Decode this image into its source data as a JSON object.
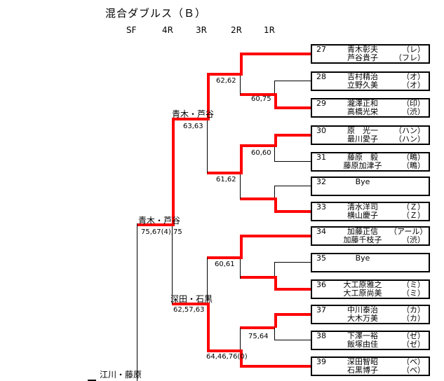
{
  "title": "混合ダブルス（Ｂ）",
  "round_headers": [
    "SF",
    "4R",
    "3R",
    "2R",
    "1R"
  ],
  "colors": {
    "advance_path": "#ff0000",
    "line": "#000000",
    "background": "#ffffff"
  },
  "entries": [
    {
      "seed": "27",
      "rows": [
        {
          "name": "青木彰夫",
          "club": "（レ）"
        },
        {
          "name": "芦谷貴子",
          "club": "（フレ）"
        }
      ]
    },
    {
      "seed": "28",
      "rows": [
        {
          "name": "吉村精治",
          "club": "（オ）"
        },
        {
          "name": "立野久美",
          "club": "（オ）"
        }
      ]
    },
    {
      "seed": "29",
      "rows": [
        {
          "name": "瀧澤正和",
          "club": "（印）"
        },
        {
          "name": "高橋光栄",
          "club": "（渋）"
        }
      ]
    },
    {
      "seed": "30",
      "rows": [
        {
          "name": "原　光一",
          "club": "（ハン）"
        },
        {
          "name": "最川愛子",
          "club": "（ハン）"
        }
      ]
    },
    {
      "seed": "31",
      "rows": [
        {
          "name": "藤原　毅",
          "club": "（鴫）"
        },
        {
          "name": "藤原加津子",
          "club": "（鴫）"
        }
      ]
    },
    {
      "seed": "32",
      "rows": [
        {
          "name": "Bye",
          "club": ""
        }
      ]
    },
    {
      "seed": "33",
      "rows": [
        {
          "name": "清水洋司",
          "club": "（Ｚ）"
        },
        {
          "name": "横山慶子",
          "club": "（Ｚ）"
        }
      ]
    },
    {
      "seed": "34",
      "rows": [
        {
          "name": "加藤正信",
          "club": "（アール）"
        },
        {
          "name": "加藤千枝子",
          "club": "（渋）"
        }
      ]
    },
    {
      "seed": "35",
      "rows": [
        {
          "name": "Bye",
          "club": ""
        }
      ]
    },
    {
      "seed": "36",
      "rows": [
        {
          "name": "大工原雅之",
          "club": "（ミ）"
        },
        {
          "name": "大工原尚美",
          "club": "（ミ）"
        }
      ]
    },
    {
      "seed": "37",
      "rows": [
        {
          "name": "中川泰治",
          "club": "（カ）"
        },
        {
          "name": "大木万美",
          "club": "（カ）"
        }
      ]
    },
    {
      "seed": "38",
      "rows": [
        {
          "name": "下澤一裕",
          "club": "（ゼ）"
        },
        {
          "name": "飯塚由佳",
          "club": "（ゼ）"
        }
      ]
    },
    {
      "seed": "39",
      "rows": [
        {
          "name": "深田智昭",
          "club": "（ベ）"
        },
        {
          "name": "石黒博子",
          "club": "（ベ）"
        }
      ]
    }
  ],
  "score_labels": [
    "62,62",
    "60,75",
    "63,63",
    "60,60",
    "61,62",
    "75,67(4),75",
    "60,61",
    "62,57,63",
    "75,64",
    "64,46,76(0)"
  ],
  "advancer_labels": [
    "青木・芦谷",
    "青木・芦谷",
    "深田・石黒",
    "江川・藤原"
  ]
}
